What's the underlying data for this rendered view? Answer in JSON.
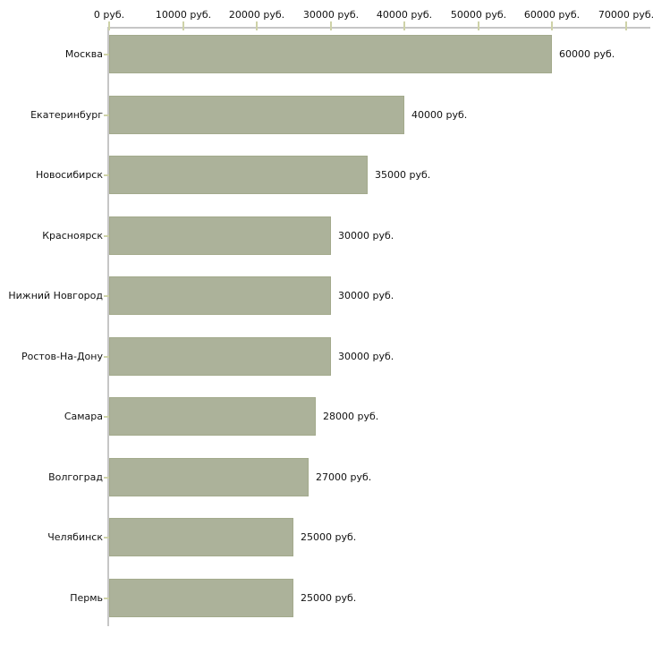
{
  "chart_data": {
    "type": "bar",
    "orientation": "horizontal",
    "title": "",
    "xlabel": "",
    "ylabel": "",
    "unit": "руб.",
    "grid": "off",
    "legend": "none",
    "categories": [
      "Москва",
      "Екатеринбург",
      "Новосибирск",
      "Красноярск",
      "Нижний Новгород",
      "Ростов-На-Дону",
      "Самара",
      "Волгоград",
      "Челябинск",
      "Пермь"
    ],
    "values": [
      60000,
      40000,
      35000,
      30000,
      30000,
      30000,
      28000,
      27000,
      25000,
      25000
    ],
    "value_labels": [
      "60000 руб.",
      "40000 руб.",
      "35000 руб.",
      "30000 руб.",
      "30000 руб.",
      "30000 руб.",
      "28000 руб.",
      "27000 руб.",
      "25000 руб.",
      "25000 руб."
    ],
    "x_axis": {
      "min": 0,
      "max": 70000,
      "tick_interval": 10000,
      "tick_labels": [
        "0 руб.",
        "10000 руб.",
        "20000 руб.",
        "30000 руб.",
        "40000 руб.",
        "50000 руб.",
        "60000 руб.",
        "70000 руб."
      ]
    },
    "colors": {
      "bar_fill": "#acb29a",
      "bar_border": "#a3aa8c",
      "axis_line": "#c6c6c6",
      "tick_mark": "#ced2a8",
      "text": "#111111",
      "background": "#ffffff"
    }
  }
}
